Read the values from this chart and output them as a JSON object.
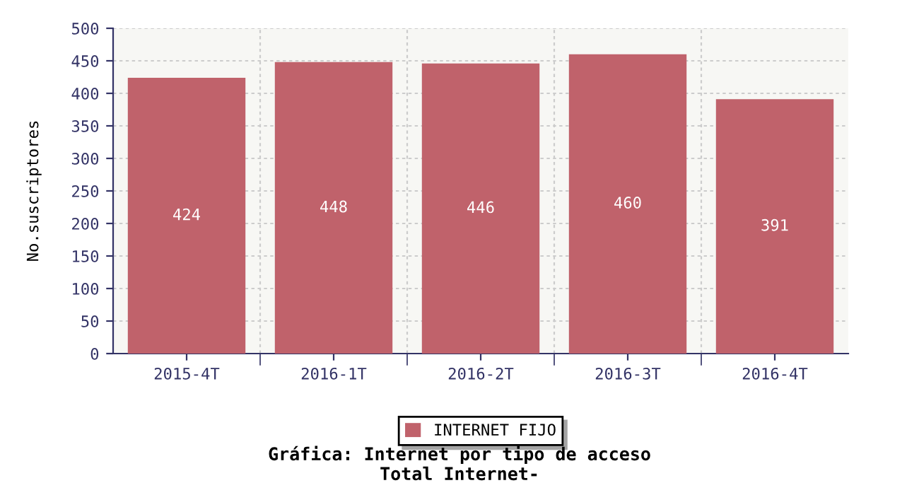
{
  "chart_data": {
    "type": "bar",
    "title": "Gráfica: Internet por tipo de acceso\nTotal Internet-",
    "ylabel": "No.suscriptores",
    "categories": [
      "2015-4T",
      "2016-1T",
      "2016-2T",
      "2016-3T",
      "2016-4T"
    ],
    "series": [
      {
        "name": "INTERNET FIJO",
        "color": "#c0626b",
        "values": [
          424,
          448,
          446,
          460,
          391
        ]
      }
    ],
    "ylim": [
      0,
      500
    ],
    "yticks": [
      0,
      50,
      100,
      150,
      200,
      250,
      300,
      350,
      400,
      450,
      500
    ],
    "grid": true,
    "legend": "bottom",
    "data_labels": true
  }
}
